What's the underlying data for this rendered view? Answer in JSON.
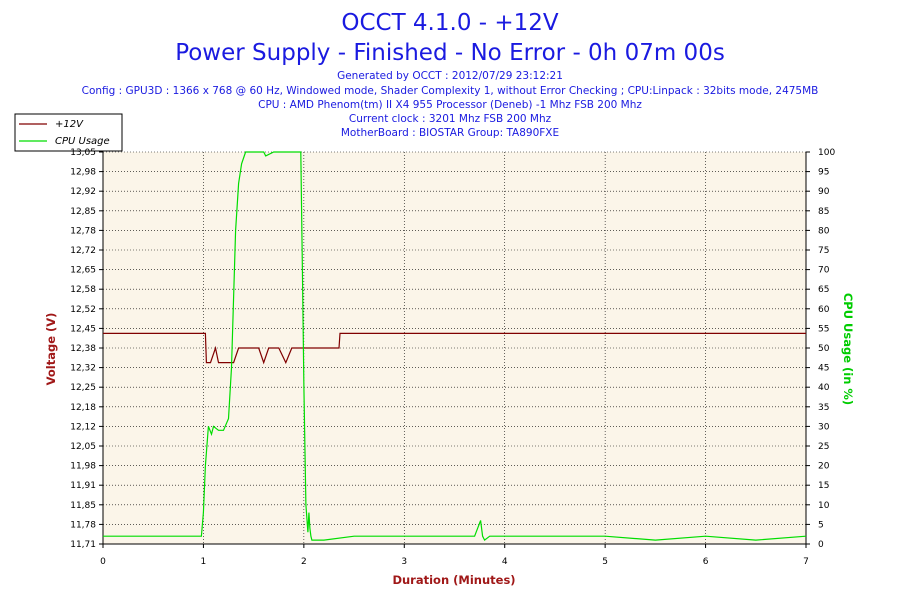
{
  "header": {
    "title": "OCCT 4.1.0 - +12V",
    "subtitle": "Power Supply - Finished - No Error - 0h 07m 00s",
    "info": [
      "Generated by OCCT : 2012/07/29 23:12:21",
      "Config : GPU3D : 1366 x 768 @ 60 Hz, Windowed mode, Shader Complexity 1, without Error Checking ; CPU:Linpack : 32bits mode, 2475MB",
      "CPU : AMD Phenom(tm) II X4 955 Processor (Deneb) -1 Mhz FSB 200 Mhz",
      "Current clock : 3201 Mhz FSB 200 Mhz",
      "MotherBoard : BIOSTAR Group: TA890FXE"
    ]
  },
  "legend": [
    {
      "name": "+12V",
      "color": "#800000"
    },
    {
      "name": "CPU Usage",
      "color": "#00dd00"
    }
  ],
  "chart_data": {
    "type": "line",
    "xlabel": "Duration (Minutes)",
    "ylabel_left": "Voltage (V)",
    "ylabel_right": "CPU Usage (in %)",
    "xlim": [
      0,
      7
    ],
    "ylim_left": [
      11.71,
      13.05
    ],
    "ylim_right": [
      0,
      100
    ],
    "x_ticks": [
      "0",
      "1",
      "2",
      "3",
      "4",
      "5",
      "6",
      "7"
    ],
    "x_tick_values": [
      0,
      1,
      2,
      3,
      4,
      5,
      6,
      7
    ],
    "y_left_ticks": [
      "11,71",
      "11,78",
      "11,85",
      "11,91",
      "11,98",
      "12,05",
      "12,12",
      "12,18",
      "12,25",
      "12,32",
      "12,38",
      "12,45",
      "12,52",
      "12,58",
      "12,65",
      "12,72",
      "12,78",
      "12,85",
      "12,92",
      "12,98",
      "13,05"
    ],
    "y_right_ticks": [
      "0",
      "5",
      "10",
      "15",
      "20",
      "25",
      "30",
      "35",
      "40",
      "45",
      "50",
      "55",
      "60",
      "65",
      "70",
      "75",
      "80",
      "85",
      "90",
      "95",
      "100"
    ],
    "grid": true,
    "legend_position": "top-left",
    "colors": {
      "voltage": "#800000",
      "cpu": "#00dd00",
      "plot_bg": "#fbf5e9",
      "grid": "#000000",
      "text": "#1a1ae0",
      "voltage_label": "#a01818",
      "cpu_label": "#00cc00",
      "xlabel": "#a01818"
    },
    "series": [
      {
        "name": "+12V",
        "axis": "left",
        "x": [
          0,
          1.02,
          1.03,
          1.07,
          1.12,
          1.15,
          1.2,
          1.3,
          1.35,
          1.55,
          1.6,
          1.65,
          1.75,
          1.82,
          1.88,
          1.93,
          2.0,
          2.05,
          2.35,
          2.36,
          7
        ],
        "values": [
          12.43,
          12.43,
          12.33,
          12.33,
          12.38,
          12.33,
          12.33,
          12.33,
          12.38,
          12.38,
          12.33,
          12.38,
          12.38,
          12.33,
          12.38,
          12.38,
          12.38,
          12.38,
          12.38,
          12.43,
          12.43
        ]
      },
      {
        "name": "CPU Usage",
        "axis": "right",
        "x": [
          0,
          0.3,
          0.6,
          0.98,
          1.0,
          1.02,
          1.05,
          1.08,
          1.1,
          1.15,
          1.2,
          1.25,
          1.28,
          1.32,
          1.35,
          1.38,
          1.42,
          1.48,
          1.6,
          1.62,
          1.7,
          1.95,
          1.97,
          1.985,
          2.0,
          2.02,
          2.04,
          2.05,
          2.06,
          2.07,
          2.08,
          2.2,
          2.5,
          3.0,
          3.5,
          3.7,
          3.76,
          3.78,
          3.8,
          3.85,
          4.0,
          4.5,
          5.0,
          5.5,
          6.0,
          6.5,
          7.0
        ],
        "values": [
          2,
          2,
          2,
          2,
          8,
          20,
          30,
          28,
          30,
          29,
          29,
          32,
          45,
          80,
          92,
          97,
          100,
          100,
          100,
          99,
          100,
          100,
          100,
          70,
          40,
          10,
          3,
          8,
          4,
          2,
          1,
          1,
          2,
          2,
          2,
          2,
          6,
          2,
          1,
          2,
          2,
          2,
          2,
          1,
          2,
          1,
          2
        ]
      }
    ]
  }
}
